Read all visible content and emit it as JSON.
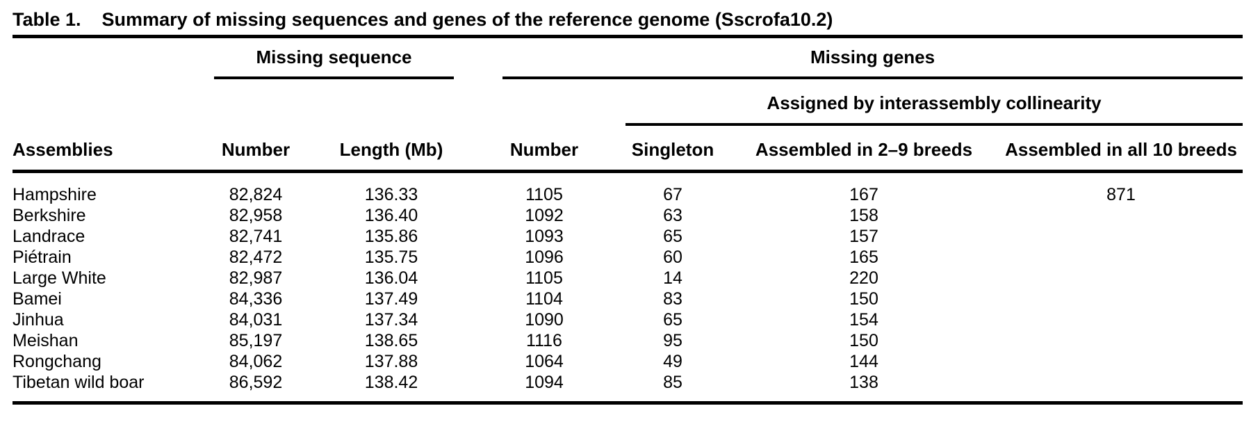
{
  "table": {
    "title_label": "Table 1.",
    "title_text": "Summary of missing sequences and genes of the reference genome (Sscrofa10.2)",
    "groups": {
      "missing_sequence": "Missing sequence",
      "missing_genes": "Missing genes",
      "assigned_by": "Assigned by interassembly collinearity"
    },
    "columns": [
      "Assemblies",
      "Number",
      "Length (Mb)",
      "Number",
      "Singleton",
      "Assembled in 2–9 breeds",
      "Assembled in all 10 breeds"
    ],
    "rows": [
      {
        "assembly": "Hampshire",
        "seq_number": "82,824",
        "seq_length_mb": "136.33",
        "genes_number": "1105",
        "singleton": "67",
        "breeds_2_9": "167",
        "all_10_breeds": "871"
      },
      {
        "assembly": "Berkshire",
        "seq_number": "82,958",
        "seq_length_mb": "136.40",
        "genes_number": "1092",
        "singleton": "63",
        "breeds_2_9": "158",
        "all_10_breeds": ""
      },
      {
        "assembly": "Landrace",
        "seq_number": "82,741",
        "seq_length_mb": "135.86",
        "genes_number": "1093",
        "singleton": "65",
        "breeds_2_9": "157",
        "all_10_breeds": ""
      },
      {
        "assembly": "Piétrain",
        "seq_number": "82,472",
        "seq_length_mb": "135.75",
        "genes_number": "1096",
        "singleton": "60",
        "breeds_2_9": "165",
        "all_10_breeds": ""
      },
      {
        "assembly": "Large White",
        "seq_number": "82,987",
        "seq_length_mb": "136.04",
        "genes_number": "1105",
        "singleton": "14",
        "breeds_2_9": "220",
        "all_10_breeds": ""
      },
      {
        "assembly": "Bamei",
        "seq_number": "84,336",
        "seq_length_mb": "137.49",
        "genes_number": "1104",
        "singleton": "83",
        "breeds_2_9": "150",
        "all_10_breeds": ""
      },
      {
        "assembly": "Jinhua",
        "seq_number": "84,031",
        "seq_length_mb": "137.34",
        "genes_number": "1090",
        "singleton": "65",
        "breeds_2_9": "154",
        "all_10_breeds": ""
      },
      {
        "assembly": "Meishan",
        "seq_number": "85,197",
        "seq_length_mb": "138.65",
        "genes_number": "1116",
        "singleton": "95",
        "breeds_2_9": "150",
        "all_10_breeds": ""
      },
      {
        "assembly": "Rongchang",
        "seq_number": "84,062",
        "seq_length_mb": "137.88",
        "genes_number": "1064",
        "singleton": "49",
        "breeds_2_9": "144",
        "all_10_breeds": ""
      },
      {
        "assembly": "Tibetan wild boar",
        "seq_number": "86,592",
        "seq_length_mb": "138.42",
        "genes_number": "1094",
        "singleton": "85",
        "breeds_2_9": "138",
        "all_10_breeds": ""
      }
    ]
  }
}
